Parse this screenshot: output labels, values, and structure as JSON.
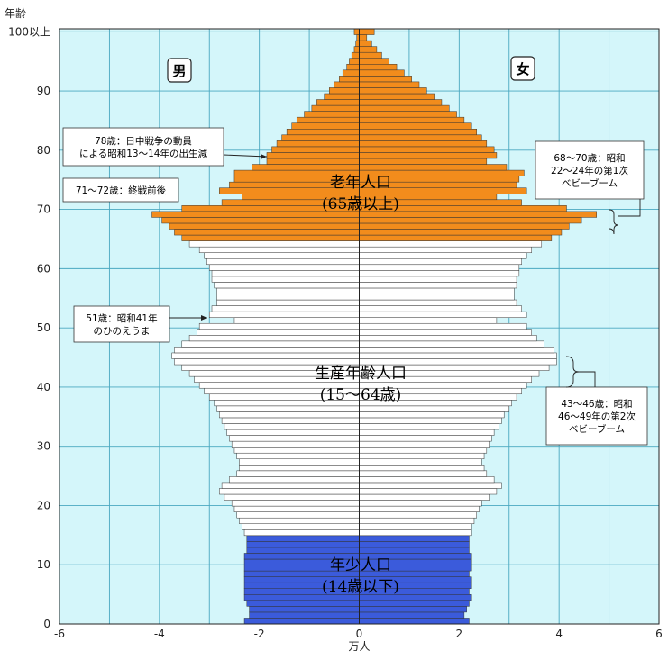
{
  "chart_data": {
    "type": "bar",
    "orientation": "horizontal-population-pyramid",
    "xlabel": "万人",
    "ylabel": "年齢",
    "xlim": [
      -6,
      6
    ],
    "ylim": [
      0,
      100
    ],
    "xticks": [
      -6,
      -4,
      -2,
      0,
      2,
      4,
      6
    ],
    "yticks": [
      0,
      10,
      20,
      30,
      40,
      50,
      60,
      70,
      80,
      90,
      100
    ],
    "ytick_labels": [
      "0",
      "10",
      "20",
      "30",
      "40",
      "50",
      "60",
      "70",
      "80",
      "90",
      "100以上"
    ],
    "grid": true,
    "sex_labels": {
      "male": "男",
      "female": "女"
    },
    "groups": [
      {
        "key": "young",
        "line1": "年少人口",
        "line2": "(14歳以下)",
        "age_from": 0,
        "age_to": 14,
        "color": "#3b5bdb"
      },
      {
        "key": "working",
        "line1": "生産年齢人口",
        "line2": "(15～64歳)",
        "age_from": 15,
        "age_to": 64,
        "color": "#ffffff"
      },
      {
        "key": "elderly",
        "line1": "老年人口",
        "line2": "(65歳以上)",
        "age_from": 65,
        "age_to": 100,
        "color": "#f28c1c"
      }
    ],
    "annotations": [
      {
        "key": "a78",
        "lines": [
          "78歳：日中戦争の動員",
          "による昭和13～14年の出生減"
        ]
      },
      {
        "key": "a71",
        "lines": [
          "71～72歳：終戦前後"
        ]
      },
      {
        "key": "a51",
        "lines": [
          "51歳：昭和41年",
          "のひのえうま"
        ]
      },
      {
        "key": "a68",
        "lines": [
          "68～70歳：昭和",
          "22～24年の第1次",
          "ベビーブーム"
        ]
      },
      {
        "key": "a43",
        "lines": [
          "43～46歳：昭和",
          "46～49年の第2次",
          "ベビーブーム"
        ]
      }
    ],
    "male": [
      2.3,
      2.2,
      2.2,
      2.25,
      2.3,
      2.3,
      2.3,
      2.3,
      2.3,
      2.3,
      2.3,
      2.3,
      2.25,
      2.25,
      2.25,
      2.3,
      2.35,
      2.4,
      2.45,
      2.5,
      2.55,
      2.7,
      2.8,
      2.75,
      2.6,
      2.45,
      2.4,
      2.4,
      2.45,
      2.5,
      2.55,
      2.6,
      2.65,
      2.7,
      2.75,
      2.8,
      2.85,
      2.9,
      3.0,
      3.1,
      3.2,
      3.3,
      3.4,
      3.55,
      3.7,
      3.75,
      3.7,
      3.55,
      3.4,
      3.25,
      3.2,
      2.5,
      3.0,
      2.95,
      2.85,
      2.85,
      2.85,
      2.9,
      2.95,
      2.95,
      3.0,
      3.05,
      3.1,
      3.2,
      3.4,
      3.55,
      3.7,
      3.8,
      3.95,
      4.15,
      3.55,
      2.75,
      2.35,
      2.8,
      2.6,
      2.5,
      2.5,
      2.15,
      1.85,
      1.85,
      1.75,
      1.65,
      1.55,
      1.45,
      1.35,
      1.25,
      1.1,
      0.95,
      0.85,
      0.7,
      0.6,
      0.5,
      0.4,
      0.33,
      0.25,
      0.2,
      0.15,
      0.1,
      0.07,
      0.05,
      0.1
    ],
    "female": [
      2.2,
      2.1,
      2.15,
      2.2,
      2.25,
      2.2,
      2.25,
      2.25,
      2.2,
      2.25,
      2.25,
      2.25,
      2.2,
      2.2,
      2.2,
      2.25,
      2.25,
      2.3,
      2.35,
      2.4,
      2.45,
      2.6,
      2.75,
      2.85,
      2.7,
      2.55,
      2.5,
      2.45,
      2.5,
      2.55,
      2.6,
      2.65,
      2.7,
      2.8,
      2.85,
      2.9,
      3.0,
      3.05,
      3.15,
      3.25,
      3.35,
      3.45,
      3.6,
      3.8,
      3.95,
      3.95,
      3.9,
      3.7,
      3.55,
      3.45,
      3.35,
      2.75,
      3.35,
      3.25,
      3.15,
      3.1,
      3.1,
      3.15,
      3.15,
      3.2,
      3.2,
      3.25,
      3.35,
      3.45,
      3.65,
      3.85,
      4.05,
      4.2,
      4.45,
      4.75,
      4.15,
      3.25,
      2.75,
      3.35,
      3.15,
      3.2,
      3.3,
      2.95,
      2.55,
      2.75,
      2.7,
      2.55,
      2.45,
      2.35,
      2.25,
      2.1,
      1.95,
      1.8,
      1.65,
      1.5,
      1.35,
      1.2,
      1.05,
      0.9,
      0.75,
      0.6,
      0.45,
      0.35,
      0.25,
      0.15,
      0.3
    ]
  }
}
